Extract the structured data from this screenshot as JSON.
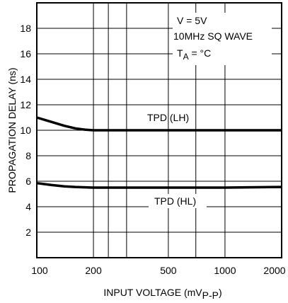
{
  "chart_data": {
    "type": "line",
    "title": "",
    "xlabel": "INPUT VOLTAGE (mV",
    "xlabel_sub": "P-P",
    "xlabel_suffix": ")",
    "ylabel": "PROPAGATION DELAY (ns)",
    "x_scale": "log",
    "xlim": [
      100,
      2000
    ],
    "ylim": [
      0,
      20
    ],
    "x_ticks": [
      100,
      200,
      500,
      1000,
      2000
    ],
    "x_tick_labels": [
      "100",
      "200",
      "500",
      "1000",
      "2000"
    ],
    "y_ticks": [
      2,
      4,
      6,
      8,
      10,
      12,
      14,
      16,
      18
    ],
    "y_tick_labels": [
      "2",
      "4",
      "6",
      "8",
      "10",
      "12",
      "14",
      "16",
      "18"
    ],
    "x_grid": [
      100,
      200,
      240,
      300,
      500,
      700,
      1000,
      2000
    ],
    "grid": true,
    "annotations": {
      "line1": "V = 5V",
      "line2": "10MHz SQ WAVE",
      "line3_main": "T",
      "line3_sub": "A",
      "line3_rest": " = °C"
    },
    "series": [
      {
        "name": "TPD (LH)",
        "x": [
          100,
          120,
          140,
          160,
          180,
          200,
          300,
          500,
          1000,
          2000
        ],
        "y": [
          11.0,
          10.65,
          10.35,
          10.15,
          10.05,
          10.0,
          10.0,
          10.0,
          10.0,
          10.0
        ]
      },
      {
        "name": "TPD (HL)",
        "x": [
          100,
          120,
          140,
          160,
          200,
          300,
          500,
          1000,
          2000
        ],
        "y": [
          5.85,
          5.7,
          5.6,
          5.55,
          5.5,
          5.5,
          5.5,
          5.5,
          5.55
        ]
      }
    ]
  }
}
